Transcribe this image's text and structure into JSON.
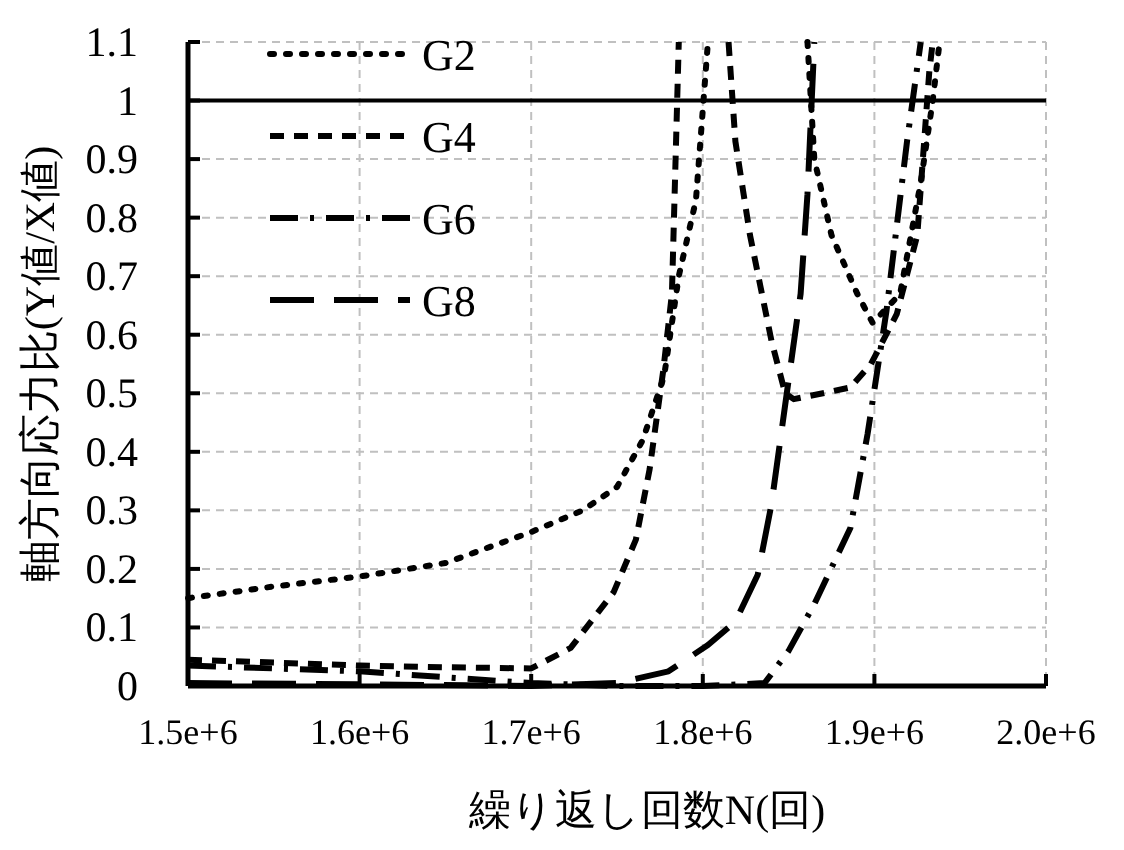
{
  "chart_data": {
    "type": "line",
    "xlabel": "繰り返し回数N(回)",
    "ylabel": "軸方向応力比(Y値/X値)",
    "xlim": [
      1500000,
      2000000
    ],
    "ylim": [
      0,
      1.1
    ],
    "xticks": [
      {
        "value": 1500000,
        "label": "1.5e+6"
      },
      {
        "value": 1600000,
        "label": "1.6e+6"
      },
      {
        "value": 1700000,
        "label": "1.7e+6"
      },
      {
        "value": 1800000,
        "label": "1.8e+6"
      },
      {
        "value": 1900000,
        "label": "1.9e+6"
      },
      {
        "value": 2000000,
        "label": "2.0e+6"
      }
    ],
    "yticks": [
      0,
      0.1,
      0.2,
      0.3,
      0.4,
      0.5,
      0.6,
      0.7,
      0.8,
      0.9,
      1,
      1.1
    ],
    "grid": true,
    "legend": "top left",
    "ref_lines": [
      {
        "axis": "y",
        "value": 1,
        "color": "#000000",
        "line_style": "solid"
      }
    ],
    "series": [
      {
        "name": "G2",
        "color": "#000000",
        "line_style": "dotted",
        "x": [
          1500000,
          1550000,
          1600000,
          1650000,
          1700000,
          1730000,
          1750000,
          1765000,
          1777500,
          1786000,
          1796000,
          1803000,
          1830000,
          1861000,
          1865000,
          1875000,
          1890000,
          1899000,
          1915000,
          1927000,
          1934000,
          1938000
        ],
        "values": [
          0.15,
          0.17,
          0.187,
          0.21,
          0.263,
          0.3,
          0.34,
          0.42,
          0.53,
          0.7,
          0.83,
          1.1,
          null,
          1.1,
          0.9,
          0.77,
          0.67,
          0.62,
          0.67,
          0.86,
          1.0,
          1.1
        ]
      },
      {
        "name": "G4",
        "color": "#000000",
        "line_style": "dashed",
        "x": [
          1500000,
          1550000,
          1600000,
          1650000,
          1700000,
          1723000,
          1748000,
          1761000,
          1769000,
          1777000,
          1782000,
          1786000,
          1800000,
          1815000,
          1819000,
          1827500,
          1840000,
          1848000,
          1853000,
          1870000,
          1886000,
          1898000,
          1913000,
          1925000,
          1932000,
          1934000
        ],
        "values": [
          0.045,
          0.04,
          0.035,
          0.032,
          0.03,
          0.065,
          0.16,
          0.25,
          0.37,
          0.54,
          0.67,
          1.1,
          null,
          1.1,
          0.93,
          0.77,
          0.59,
          0.5,
          0.49,
          0.5,
          0.51,
          0.55,
          0.635,
          0.77,
          1.05,
          1.1
        ]
      },
      {
        "name": "G6",
        "color": "#000000",
        "line_style": "dashdot",
        "x": [
          1500000,
          1550000,
          1600000,
          1650000,
          1700000,
          1750000,
          1800000,
          1836000,
          1850000,
          1865000,
          1886000,
          1896000,
          1907000,
          1919000,
          1927000
        ],
        "values": [
          0.035,
          0.03,
          0.025,
          0.015,
          0.005,
          0.0,
          0.0,
          0.005,
          0.06,
          0.14,
          0.27,
          0.43,
          0.64,
          0.93,
          1.1
        ]
      },
      {
        "name": "G8",
        "color": "#000000",
        "line_style": "longdash",
        "x": [
          1500000,
          1600000,
          1700000,
          1750000,
          1780000,
          1803000,
          1819000,
          1832000,
          1840000,
          1848000,
          1857000,
          1861000,
          1865000
        ],
        "values": [
          0.005,
          0.003,
          0.0,
          0.005,
          0.025,
          0.07,
          0.11,
          0.19,
          0.31,
          0.48,
          0.67,
          0.84,
          1.1
        ]
      }
    ]
  }
}
